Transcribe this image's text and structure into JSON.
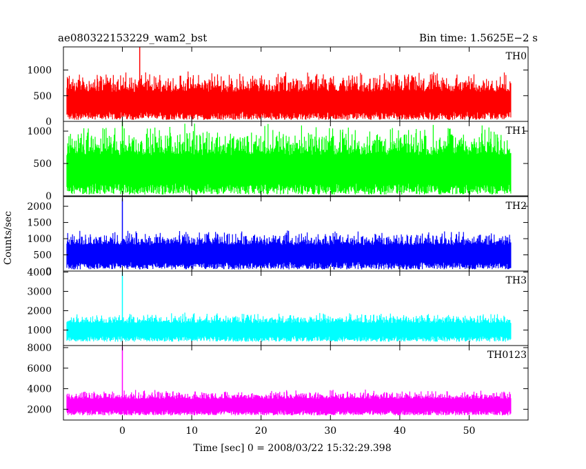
{
  "header": {
    "left_title": "ae080322153229_wam2_bst",
    "right_title": "Bin time: 1.5625E−2 s"
  },
  "chart_data": {
    "type": "line",
    "title": "ae080322153229_wam2_bst",
    "subtitle": "Bin time: 1.5625E−2 s",
    "xlabel": "Time [sec] 0 = 2008/03/22 15:32:29.398",
    "ylabel": "Counts/sec",
    "xlim": [
      -8.5,
      58.5
    ],
    "x_ticks": [
      0,
      10,
      20,
      30,
      40,
      50
    ],
    "data_x_range": [
      -8,
      56
    ],
    "bin_time": 0.015625,
    "grid": false,
    "panels": [
      {
        "name": "TH0",
        "color": "#ff0000",
        "ylim": [
          0,
          1450
        ],
        "y_ticks": [
          0,
          500,
          1000
        ],
        "baseline": 480,
        "spread": 300,
        "floor": 30,
        "peak_x": 2.5,
        "peak_value": 1450
      },
      {
        "name": "TH1",
        "color": "#00ff00",
        "ylim": [
          0,
          1150
        ],
        "y_ticks": [
          0,
          500,
          1000
        ],
        "baseline": 520,
        "spread": 360,
        "floor": 20,
        "peak_x": 0,
        "peak_value": 1150
      },
      {
        "name": "TH2",
        "color": "#0000ff",
        "ylim": [
          0,
          2300
        ],
        "y_ticks": [
          0,
          500,
          1000,
          1500,
          2000
        ],
        "baseline": 700,
        "spread": 330,
        "floor": 50,
        "peak_x": 0,
        "peak_value": 2250
      },
      {
        "name": "TH3",
        "color": "#00ffff",
        "ylim": [
          200,
          4050
        ],
        "y_ticks": [
          1000,
          2000,
          3000,
          4000
        ],
        "baseline": 1250,
        "spread": 380,
        "floor": 400,
        "peak_x": 0,
        "peak_value": 4000
      },
      {
        "name": "TH0123",
        "color": "#ff00ff",
        "ylim": [
          950,
          8200
        ],
        "y_ticks": [
          2000,
          4000,
          6000,
          8000
        ],
        "baseline": 2800,
        "spread": 650,
        "floor": 1400,
        "peak_x": 0,
        "peak_value": 8100
      }
    ]
  }
}
